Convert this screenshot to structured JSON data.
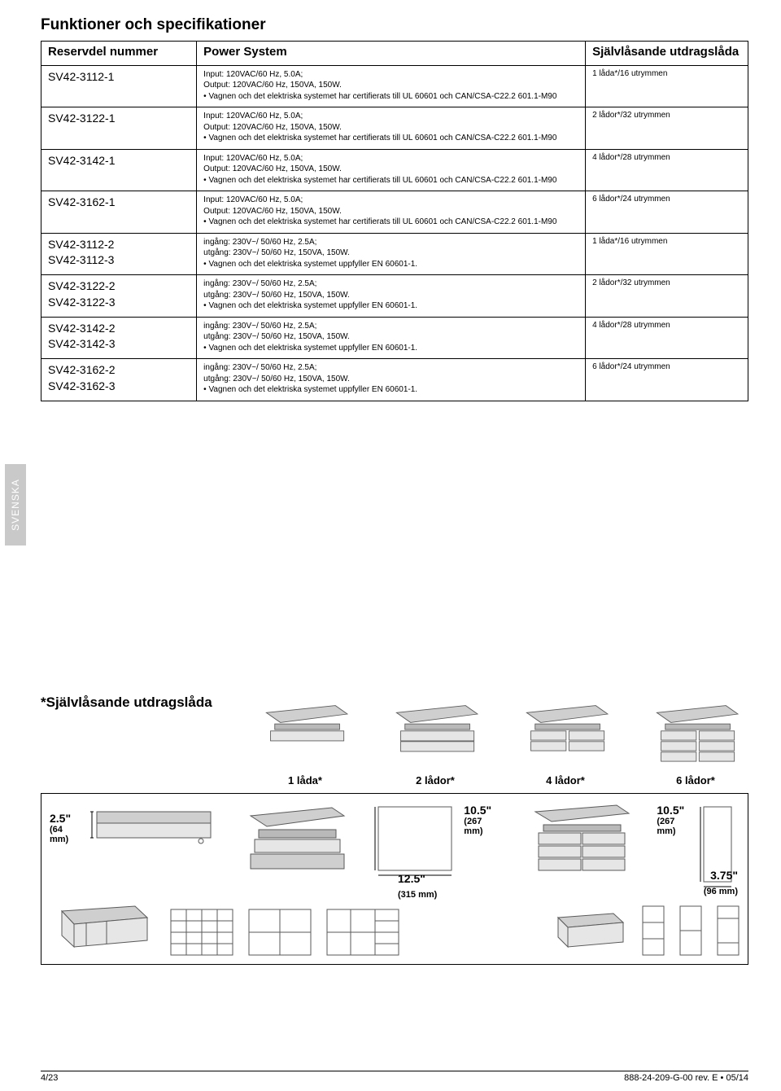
{
  "title": "Funktioner och specifikationer",
  "table": {
    "headers": {
      "part": "Reservdel nummer",
      "power": "Power System",
      "drawer": "Självlåsande utdragslåda"
    },
    "rows": [
      {
        "part": "SV42-3112-1",
        "l1": "Input: 120VAC/60 Hz, 5.0A;",
        "l2": "Output: 120VAC/60 Hz, 150VA, 150W.",
        "l3": "• Vagnen och det elektriska systemet har certifierats till UL 60601 och CAN/CSA-C22.2 601.1-M90",
        "drawer": "1 låda*/16 utrymmen"
      },
      {
        "part": "SV42-3122-1",
        "l1": "Input: 120VAC/60 Hz, 5.0A;",
        "l2": "Output: 120VAC/60 Hz, 150VA, 150W.",
        "l3": "• Vagnen och det elektriska systemet har certifierats till UL 60601 och CAN/CSA-C22.2 601.1-M90",
        "drawer": "2 lådor*/32 utrymmen"
      },
      {
        "part": "SV42-3142-1",
        "l1": "Input: 120VAC/60 Hz, 5.0A;",
        "l2": "Output: 120VAC/60 Hz, 150VA, 150W.",
        "l3": "• Vagnen och det elektriska systemet har certifierats till UL 60601 och CAN/CSA-C22.2 601.1-M90",
        "drawer": "4 lådor*/28 utrymmen"
      },
      {
        "part": "SV42-3162-1",
        "l1": "Input: 120VAC/60 Hz, 5.0A;",
        "l2": "Output: 120VAC/60 Hz, 150VA, 150W.",
        "l3": "• Vagnen och det elektriska systemet har certifierats till UL 60601 och CAN/CSA-C22.2 601.1-M90",
        "drawer": "6 lådor*/24 utrymmen"
      },
      {
        "part": "SV42-3112-2\nSV42-3112-3",
        "l1": "ingång: 230V~/ 50/60 Hz, 2.5A;",
        "l2": "utgång: 230V~/ 50/60 Hz, 150VA, 150W.",
        "l3": "• Vagnen och det elektriska systemet uppfyller EN 60601-1.",
        "drawer": "1 låda*/16 utrymmen"
      },
      {
        "part": "SV42-3122-2\nSV42-3122-3",
        "l1": "ingång: 230V~/ 50/60 Hz, 2.5A;",
        "l2": "utgång: 230V~/ 50/60 Hz, 150VA, 150W.",
        "l3": "• Vagnen och det elektriska systemet uppfyller EN 60601-1.",
        "drawer": "2 lådor*/32 utrymmen"
      },
      {
        "part": "SV42-3142-2\nSV42-3142-3",
        "l1": "ingång: 230V~/ 50/60 Hz, 2.5A;",
        "l2": "utgång: 230V~/ 50/60 Hz, 150VA, 150W.",
        "l3": "• Vagnen och det elektriska systemet uppfyller EN 60601-1.",
        "drawer": "4 lådor*/28 utrymmen"
      },
      {
        "part": "SV42-3162-2\nSV42-3162-3",
        "l1": "ingång: 230V~/ 50/60 Hz, 2.5A;",
        "l2": "utgång: 230V~/ 50/60 Hz, 150VA, 150W.",
        "l3": "• Vagnen och det elektriska systemet uppfyller EN 60601-1.",
        "drawer": "6 lådor*/24 utrymmen"
      }
    ]
  },
  "sideTab": "SVENSKA",
  "section2": {
    "title": "*Självlåsande utdragslåda",
    "labels": [
      "1 låda*",
      "2 lådor*",
      "4 lådor*",
      "6 lådor*"
    ]
  },
  "dims": {
    "d1": "2.5\"",
    "d1sub": "(64 mm)",
    "d2": "10.5\"",
    "d2sub": "(267 mm)",
    "d3": "12.5\"",
    "d3sub": "(315 mm)",
    "d4": "10.5\"",
    "d4sub": "(267 mm)",
    "d5": "3.75\"",
    "d5sub": "(96 mm)"
  },
  "footer": {
    "left": "4/23",
    "right": "888-24-209-G-00 rev. E • 05/14"
  },
  "colors": {
    "line": "#5a5a5a",
    "fillLight": "#e6e6e6",
    "fillMed": "#cfcfcf",
    "fillDark": "#b9b9b9"
  }
}
